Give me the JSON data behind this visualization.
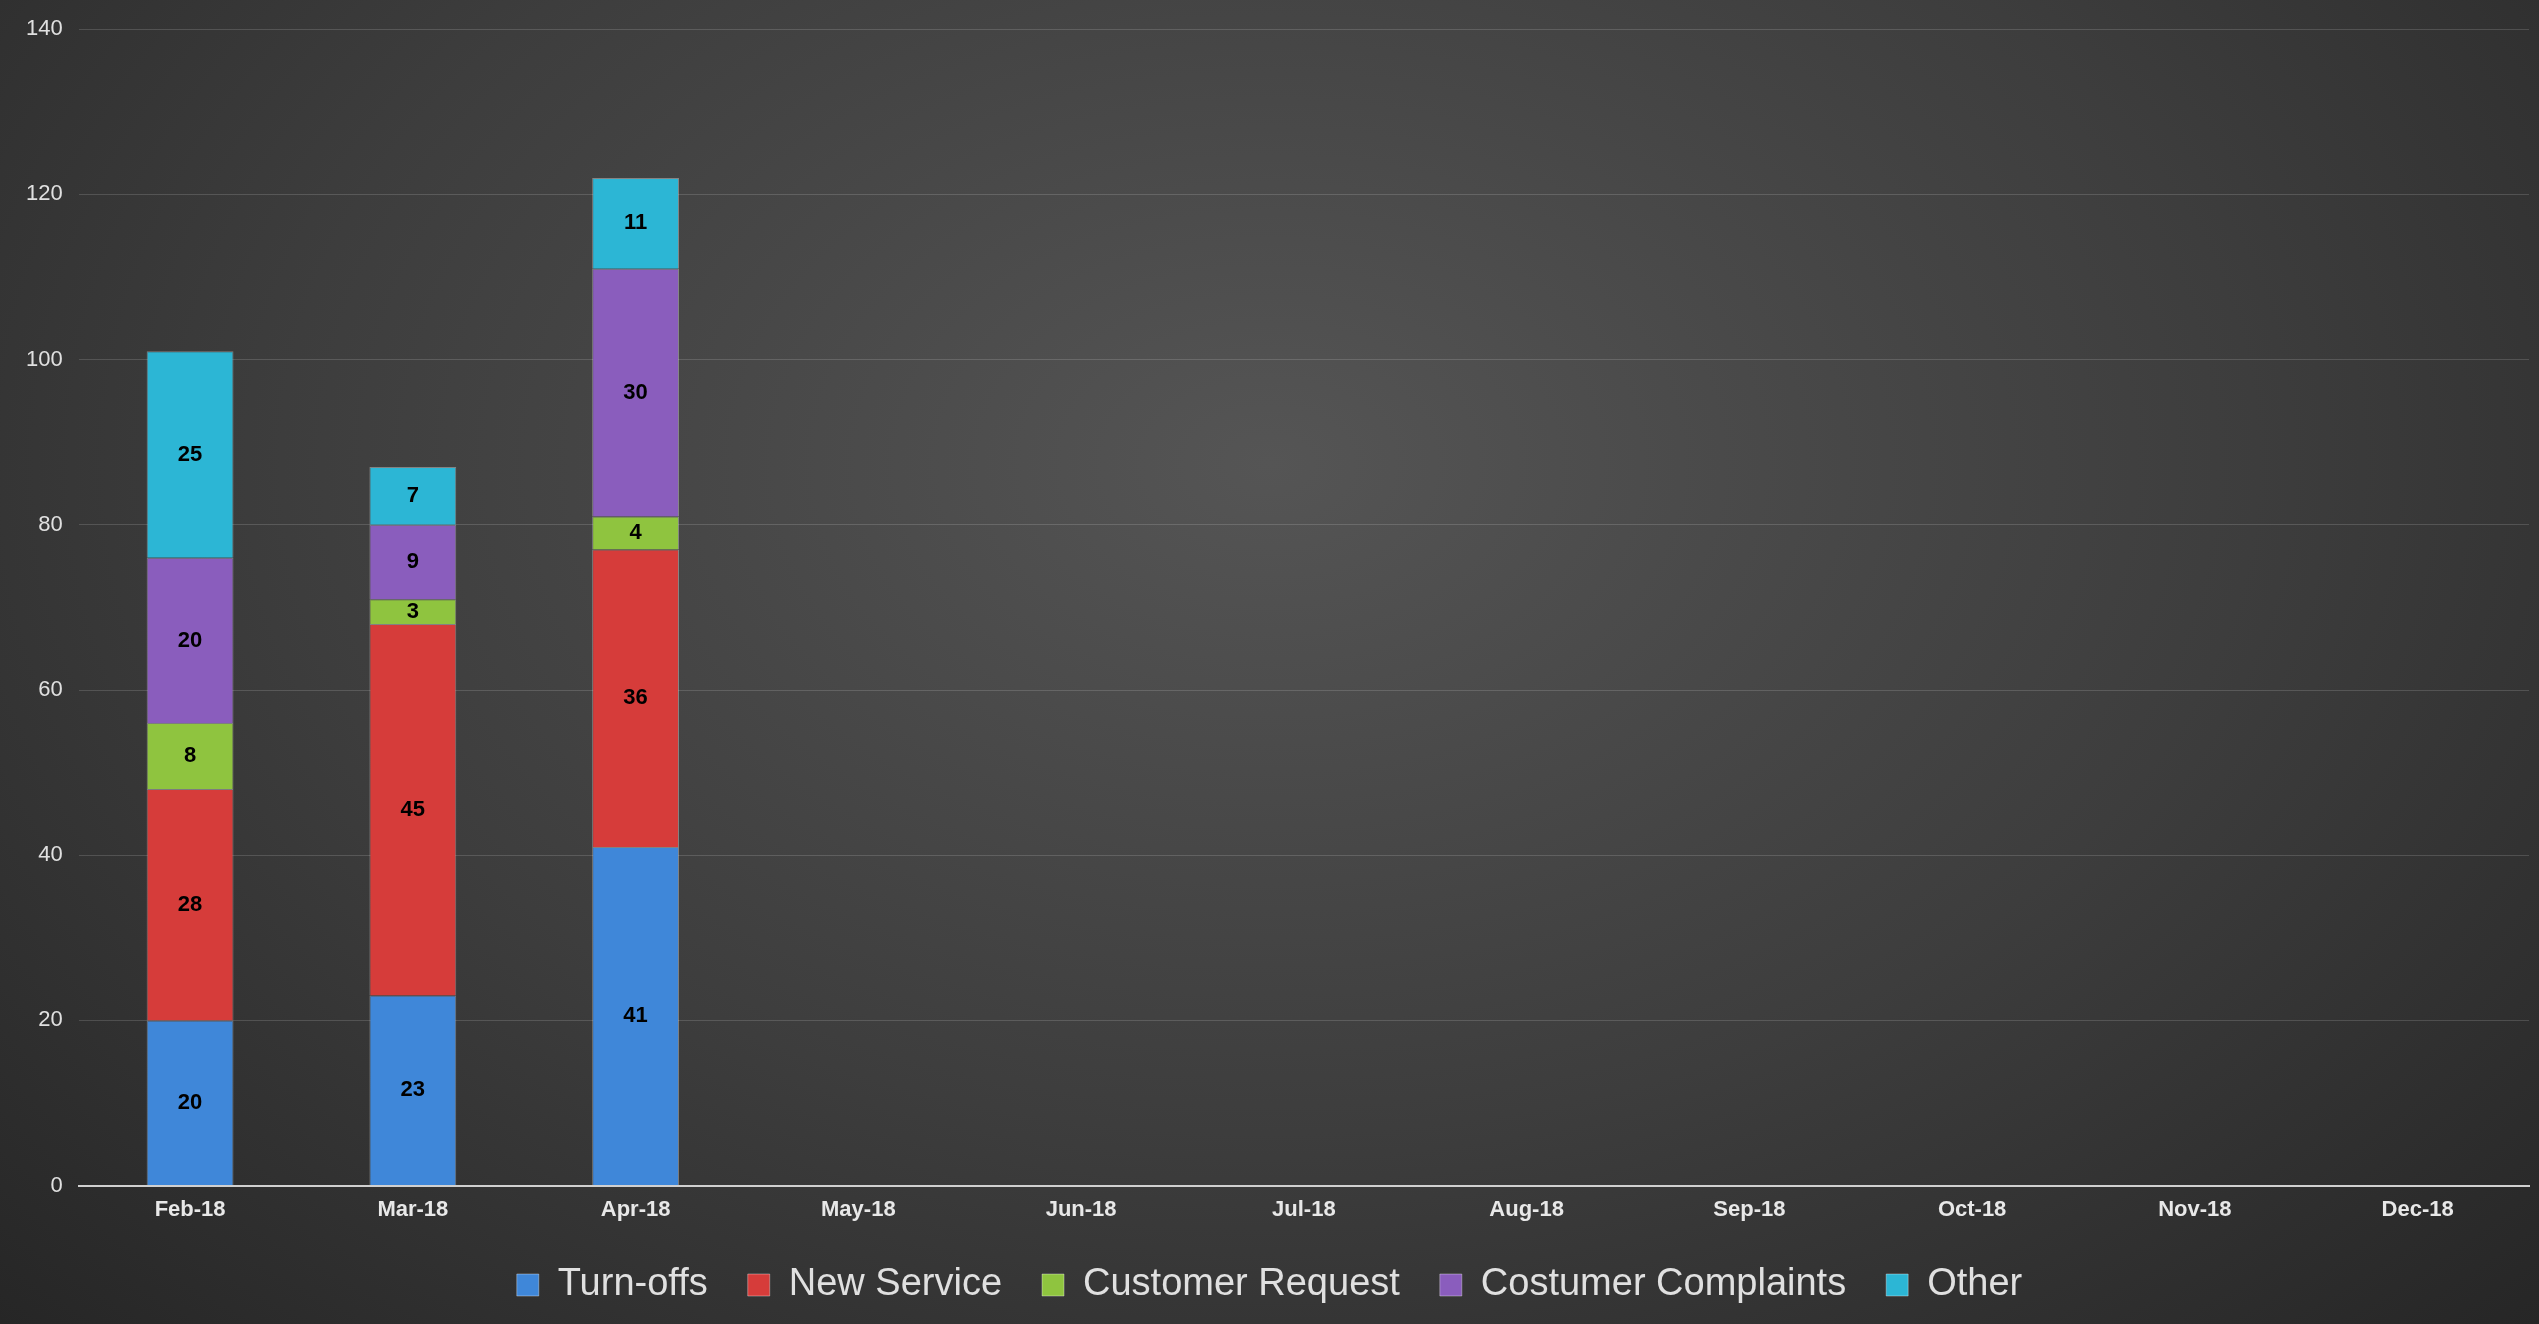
{
  "chart_data": {
    "type": "bar",
    "stacked": true,
    "categories": [
      "Feb-18",
      "Mar-18",
      "Apr-18",
      "May-18",
      "Jun-18",
      "Jul-18",
      "Aug-18",
      "Sep-18",
      "Oct-18",
      "Nov-18",
      "Dec-18"
    ],
    "series": [
      {
        "name": "Turn-offs",
        "color": "#3f87d9",
        "values": [
          20,
          23,
          41,
          null,
          null,
          null,
          null,
          null,
          null,
          null,
          null
        ]
      },
      {
        "name": "New Service",
        "color": "#d63c3a",
        "values": [
          28,
          45,
          36,
          null,
          null,
          null,
          null,
          null,
          null,
          null,
          null
        ]
      },
      {
        "name": "Customer Request",
        "color": "#8fc43f",
        "values": [
          8,
          3,
          4,
          null,
          null,
          null,
          null,
          null,
          null,
          null,
          null
        ]
      },
      {
        "name": "Costumer Complaints",
        "color": "#8a5dbd",
        "values": [
          20,
          9,
          30,
          null,
          null,
          null,
          null,
          null,
          null,
          null,
          null
        ]
      },
      {
        "name": "Other",
        "color": "#2cb6d5",
        "values": [
          25,
          7,
          11,
          null,
          null,
          null,
          null,
          null,
          null,
          null,
          null
        ]
      }
    ],
    "ylim": [
      0,
      140
    ],
    "yticks": [
      0,
      20,
      40,
      60,
      80,
      100,
      120,
      140
    ],
    "grid": "y",
    "legend": "bottom",
    "data_labels": true
  }
}
